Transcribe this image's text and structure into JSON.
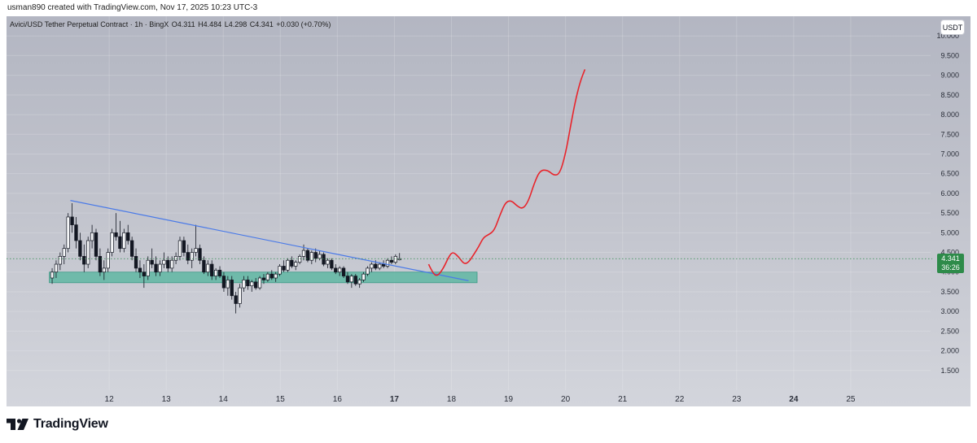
{
  "header": {
    "created_line": "usman890 created with TradingView.com, Nov 17, 2025 10:23 UTC-3"
  },
  "legend": {
    "symbol": "Avici/USD Tether Perpetual Contract · 1h · BingX",
    "open": "O4.311",
    "high": "H4.484",
    "low": "L4.298",
    "close": "C4.341",
    "change": "+0.030 (+0.70%)"
  },
  "currency_badge": "USDT",
  "last_price": {
    "price": "4.341",
    "countdown": "36:26",
    "value": 4.341
  },
  "brand": {
    "name": "TradingView"
  },
  "colors": {
    "bull": "#131722",
    "bear": "#131722",
    "trendline": "#4a7ae8",
    "support_zone": "#5fb7a3",
    "projection": "#e8242b",
    "last_price_line": "#2e8b4a",
    "last_price_label": "#2e8b4a"
  },
  "chart_data": {
    "type": "candlestick",
    "y_axis": {
      "labels": [
        "10.000",
        "9.500",
        "9.000",
        "8.500",
        "8.000",
        "7.500",
        "7.000",
        "6.500",
        "6.000",
        "5.500",
        "5.000",
        "4.500",
        "4.000",
        "3.500",
        "3.000",
        "2.500",
        "2.000",
        "1.500"
      ],
      "values": [
        10.0,
        9.5,
        9.0,
        8.5,
        8.0,
        7.5,
        7.0,
        6.5,
        6.0,
        5.5,
        5.0,
        4.5,
        4.0,
        3.5,
        3.0,
        2.5,
        2.0,
        1.5
      ],
      "range": [
        1.0,
        10.5
      ]
    },
    "x_axis": {
      "labels": [
        "12",
        "13",
        "14",
        "15",
        "16",
        "17",
        "18",
        "19",
        "20",
        "21",
        "22",
        "23",
        "24",
        "25"
      ],
      "values": [
        12,
        13,
        14,
        15,
        16,
        17,
        18,
        19,
        20,
        21,
        22,
        23,
        24,
        25
      ],
      "bold": [
        false,
        false,
        false,
        false,
        false,
        true,
        false,
        false,
        false,
        false,
        false,
        false,
        true,
        false
      ],
      "range": [
        10.2,
        26.4
      ]
    },
    "grid": true,
    "candles": [
      {
        "t": 11.0,
        "o": 3.85,
        "h": 4.1,
        "l": 3.7,
        "c": 4.0
      },
      {
        "t": 11.07,
        "o": 4.0,
        "h": 4.3,
        "l": 3.85,
        "c": 4.2
      },
      {
        "t": 11.14,
        "o": 4.2,
        "h": 4.5,
        "l": 4.05,
        "c": 4.4
      },
      {
        "t": 11.21,
        "o": 4.4,
        "h": 4.7,
        "l": 4.2,
        "c": 4.6
      },
      {
        "t": 11.28,
        "o": 4.6,
        "h": 5.5,
        "l": 4.5,
        "c": 5.4
      },
      {
        "t": 11.35,
        "o": 5.4,
        "h": 5.75,
        "l": 5.0,
        "c": 5.2
      },
      {
        "t": 11.42,
        "o": 5.2,
        "h": 5.4,
        "l": 4.6,
        "c": 4.8
      },
      {
        "t": 11.49,
        "o": 4.8,
        "h": 5.0,
        "l": 4.3,
        "c": 4.4
      },
      {
        "t": 11.56,
        "o": 4.4,
        "h": 4.7,
        "l": 4.0,
        "c": 4.2
      },
      {
        "t": 11.63,
        "o": 4.2,
        "h": 4.9,
        "l": 4.1,
        "c": 4.8
      },
      {
        "t": 11.7,
        "o": 4.8,
        "h": 5.2,
        "l": 4.6,
        "c": 5.0
      },
      {
        "t": 11.77,
        "o": 5.0,
        "h": 5.1,
        "l": 4.3,
        "c": 4.4
      },
      {
        "t": 11.84,
        "o": 4.4,
        "h": 4.6,
        "l": 3.9,
        "c": 4.0
      },
      {
        "t": 11.91,
        "o": 4.0,
        "h": 4.3,
        "l": 3.8,
        "c": 4.1
      },
      {
        "t": 11.98,
        "o": 4.1,
        "h": 4.6,
        "l": 4.0,
        "c": 4.5
      },
      {
        "t": 12.05,
        "o": 4.5,
        "h": 5.1,
        "l": 4.4,
        "c": 5.0
      },
      {
        "t": 12.12,
        "o": 5.0,
        "h": 5.5,
        "l": 4.8,
        "c": 4.9
      },
      {
        "t": 12.19,
        "o": 4.9,
        "h": 5.3,
        "l": 4.5,
        "c": 4.6
      },
      {
        "t": 12.26,
        "o": 4.6,
        "h": 5.1,
        "l": 4.5,
        "c": 5.0
      },
      {
        "t": 12.33,
        "o": 5.0,
        "h": 5.2,
        "l": 4.7,
        "c": 4.8
      },
      {
        "t": 12.4,
        "o": 4.8,
        "h": 4.9,
        "l": 4.3,
        "c": 4.4
      },
      {
        "t": 12.47,
        "o": 4.4,
        "h": 4.6,
        "l": 4.0,
        "c": 4.1
      },
      {
        "t": 12.54,
        "o": 4.1,
        "h": 4.3,
        "l": 3.85,
        "c": 4.0
      },
      {
        "t": 12.61,
        "o": 4.0,
        "h": 4.2,
        "l": 3.6,
        "c": 3.9
      },
      {
        "t": 12.68,
        "o": 3.9,
        "h": 4.4,
        "l": 3.8,
        "c": 4.3
      },
      {
        "t": 12.75,
        "o": 4.3,
        "h": 4.6,
        "l": 4.1,
        "c": 4.2
      },
      {
        "t": 12.82,
        "o": 4.2,
        "h": 4.4,
        "l": 3.9,
        "c": 4.0
      },
      {
        "t": 12.89,
        "o": 4.0,
        "h": 4.3,
        "l": 3.9,
        "c": 4.2
      },
      {
        "t": 12.96,
        "o": 4.2,
        "h": 4.5,
        "l": 4.1,
        "c": 4.3
      },
      {
        "t": 13.03,
        "o": 4.3,
        "h": 4.4,
        "l": 4.0,
        "c": 4.1
      },
      {
        "t": 13.1,
        "o": 4.1,
        "h": 4.4,
        "l": 4.0,
        "c": 4.3
      },
      {
        "t": 13.17,
        "o": 4.3,
        "h": 4.5,
        "l": 4.2,
        "c": 4.4
      },
      {
        "t": 13.24,
        "o": 4.4,
        "h": 4.9,
        "l": 4.3,
        "c": 4.8
      },
      {
        "t": 13.31,
        "o": 4.8,
        "h": 4.9,
        "l": 4.4,
        "c": 4.5
      },
      {
        "t": 13.38,
        "o": 4.5,
        "h": 4.7,
        "l": 4.2,
        "c": 4.3
      },
      {
        "t": 13.45,
        "o": 4.3,
        "h": 4.6,
        "l": 4.1,
        "c": 4.5
      },
      {
        "t": 13.52,
        "o": 4.5,
        "h": 5.2,
        "l": 4.4,
        "c": 4.6
      },
      {
        "t": 13.59,
        "o": 4.6,
        "h": 4.7,
        "l": 4.2,
        "c": 4.3
      },
      {
        "t": 13.66,
        "o": 4.3,
        "h": 4.4,
        "l": 3.95,
        "c": 4.0
      },
      {
        "t": 13.73,
        "o": 4.0,
        "h": 4.3,
        "l": 3.9,
        "c": 4.2
      },
      {
        "t": 13.8,
        "o": 4.2,
        "h": 4.3,
        "l": 3.8,
        "c": 3.9
      },
      {
        "t": 13.87,
        "o": 3.9,
        "h": 4.1,
        "l": 3.8,
        "c": 4.05
      },
      {
        "t": 13.94,
        "o": 4.05,
        "h": 4.15,
        "l": 3.85,
        "c": 3.9
      },
      {
        "t": 14.01,
        "o": 3.9,
        "h": 4.0,
        "l": 3.5,
        "c": 3.6
      },
      {
        "t": 14.08,
        "o": 3.6,
        "h": 3.9,
        "l": 3.4,
        "c": 3.8
      },
      {
        "t": 14.15,
        "o": 3.8,
        "h": 3.9,
        "l": 3.3,
        "c": 3.4
      },
      {
        "t": 14.22,
        "o": 3.4,
        "h": 3.5,
        "l": 2.95,
        "c": 3.2
      },
      {
        "t": 14.29,
        "o": 3.2,
        "h": 3.7,
        "l": 3.1,
        "c": 3.6
      },
      {
        "t": 14.36,
        "o": 3.6,
        "h": 3.9,
        "l": 3.5,
        "c": 3.8
      },
      {
        "t": 14.43,
        "o": 3.8,
        "h": 3.9,
        "l": 3.55,
        "c": 3.65
      },
      {
        "t": 14.5,
        "o": 3.65,
        "h": 3.8,
        "l": 3.5,
        "c": 3.75
      },
      {
        "t": 14.57,
        "o": 3.75,
        "h": 3.85,
        "l": 3.55,
        "c": 3.6
      },
      {
        "t": 14.64,
        "o": 3.6,
        "h": 3.9,
        "l": 3.55,
        "c": 3.85
      },
      {
        "t": 14.71,
        "o": 3.85,
        "h": 3.95,
        "l": 3.7,
        "c": 3.8
      },
      {
        "t": 14.78,
        "o": 3.8,
        "h": 4.0,
        "l": 3.75,
        "c": 3.95
      },
      {
        "t": 14.85,
        "o": 3.95,
        "h": 4.05,
        "l": 3.8,
        "c": 3.85
      },
      {
        "t": 14.92,
        "o": 3.85,
        "h": 4.0,
        "l": 3.75,
        "c": 3.95
      },
      {
        "t": 14.99,
        "o": 3.95,
        "h": 4.2,
        "l": 3.9,
        "c": 4.15
      },
      {
        "t": 15.06,
        "o": 4.15,
        "h": 4.3,
        "l": 4.0,
        "c": 4.05
      },
      {
        "t": 15.13,
        "o": 4.05,
        "h": 4.35,
        "l": 4.0,
        "c": 4.3
      },
      {
        "t": 15.2,
        "o": 4.3,
        "h": 4.4,
        "l": 4.1,
        "c": 4.15
      },
      {
        "t": 15.27,
        "o": 4.15,
        "h": 4.3,
        "l": 4.05,
        "c": 4.25
      },
      {
        "t": 15.34,
        "o": 4.25,
        "h": 4.45,
        "l": 4.2,
        "c": 4.4
      },
      {
        "t": 15.41,
        "o": 4.4,
        "h": 4.7,
        "l": 4.3,
        "c": 4.55
      },
      {
        "t": 15.48,
        "o": 4.55,
        "h": 4.6,
        "l": 4.25,
        "c": 4.3
      },
      {
        "t": 15.55,
        "o": 4.3,
        "h": 4.55,
        "l": 4.2,
        "c": 4.5
      },
      {
        "t": 15.62,
        "o": 4.5,
        "h": 4.6,
        "l": 4.25,
        "c": 4.35
      },
      {
        "t": 15.69,
        "o": 4.35,
        "h": 4.55,
        "l": 4.3,
        "c": 4.45
      },
      {
        "t": 15.76,
        "o": 4.45,
        "h": 4.5,
        "l": 4.15,
        "c": 4.2
      },
      {
        "t": 15.83,
        "o": 4.2,
        "h": 4.35,
        "l": 4.1,
        "c": 4.3
      },
      {
        "t": 15.9,
        "o": 4.3,
        "h": 4.35,
        "l": 4.05,
        "c": 4.1
      },
      {
        "t": 15.97,
        "o": 4.1,
        "h": 4.2,
        "l": 3.95,
        "c": 4.0
      },
      {
        "t": 16.04,
        "o": 4.0,
        "h": 4.15,
        "l": 3.9,
        "c": 4.1
      },
      {
        "t": 16.11,
        "o": 4.1,
        "h": 4.15,
        "l": 3.85,
        "c": 3.9
      },
      {
        "t": 16.18,
        "o": 3.9,
        "h": 4.0,
        "l": 3.7,
        "c": 3.75
      },
      {
        "t": 16.25,
        "o": 3.75,
        "h": 3.95,
        "l": 3.6,
        "c": 3.9
      },
      {
        "t": 16.32,
        "o": 3.9,
        "h": 3.95,
        "l": 3.65,
        "c": 3.7
      },
      {
        "t": 16.39,
        "o": 3.7,
        "h": 3.85,
        "l": 3.6,
        "c": 3.8
      },
      {
        "t": 16.46,
        "o": 3.8,
        "h": 4.0,
        "l": 3.75,
        "c": 3.95
      },
      {
        "t": 16.53,
        "o": 3.95,
        "h": 4.15,
        "l": 3.9,
        "c": 4.1
      },
      {
        "t": 16.6,
        "o": 4.1,
        "h": 4.25,
        "l": 4.0,
        "c": 4.2
      },
      {
        "t": 16.67,
        "o": 4.2,
        "h": 4.3,
        "l": 4.05,
        "c": 4.1
      },
      {
        "t": 16.74,
        "o": 4.1,
        "h": 4.25,
        "l": 4.05,
        "c": 4.2
      },
      {
        "t": 16.81,
        "o": 4.2,
        "h": 4.3,
        "l": 4.1,
        "c": 4.15
      },
      {
        "t": 16.88,
        "o": 4.15,
        "h": 4.35,
        "l": 4.1,
        "c": 4.3
      },
      {
        "t": 16.95,
        "o": 4.3,
        "h": 4.4,
        "l": 4.2,
        "c": 4.25
      },
      {
        "t": 17.02,
        "o": 4.25,
        "h": 4.45,
        "l": 4.2,
        "c": 4.4
      },
      {
        "t": 17.09,
        "o": 4.311,
        "h": 4.484,
        "l": 4.298,
        "c": 4.341
      }
    ],
    "trendline": {
      "from": [
        11.32,
        5.82
      ],
      "to": [
        18.3,
        3.78
      ]
    },
    "support_zone": {
      "x_range": [
        10.95,
        18.45
      ],
      "y_range": [
        3.73,
        4.0
      ]
    },
    "last_price_line": 4.341,
    "projection": [
      [
        17.6,
        4.2
      ],
      [
        17.68,
        3.95
      ],
      [
        17.76,
        3.9
      ],
      [
        17.86,
        4.1
      ],
      [
        17.95,
        4.38
      ],
      [
        18.02,
        4.52
      ],
      [
        18.12,
        4.4
      ],
      [
        18.22,
        4.2
      ],
      [
        18.3,
        4.25
      ],
      [
        18.38,
        4.42
      ],
      [
        18.48,
        4.65
      ],
      [
        18.56,
        4.88
      ],
      [
        18.65,
        4.95
      ],
      [
        18.75,
        5.05
      ],
      [
        18.85,
        5.45
      ],
      [
        18.95,
        5.78
      ],
      [
        19.05,
        5.82
      ],
      [
        19.15,
        5.68
      ],
      [
        19.25,
        5.6
      ],
      [
        19.35,
        5.8
      ],
      [
        19.45,
        6.25
      ],
      [
        19.55,
        6.58
      ],
      [
        19.68,
        6.6
      ],
      [
        19.8,
        6.45
      ],
      [
        19.9,
        6.5
      ],
      [
        20.0,
        7.0
      ],
      [
        20.1,
        7.8
      ],
      [
        20.18,
        8.4
      ],
      [
        20.26,
        8.85
      ],
      [
        20.34,
        9.15
      ]
    ]
  }
}
